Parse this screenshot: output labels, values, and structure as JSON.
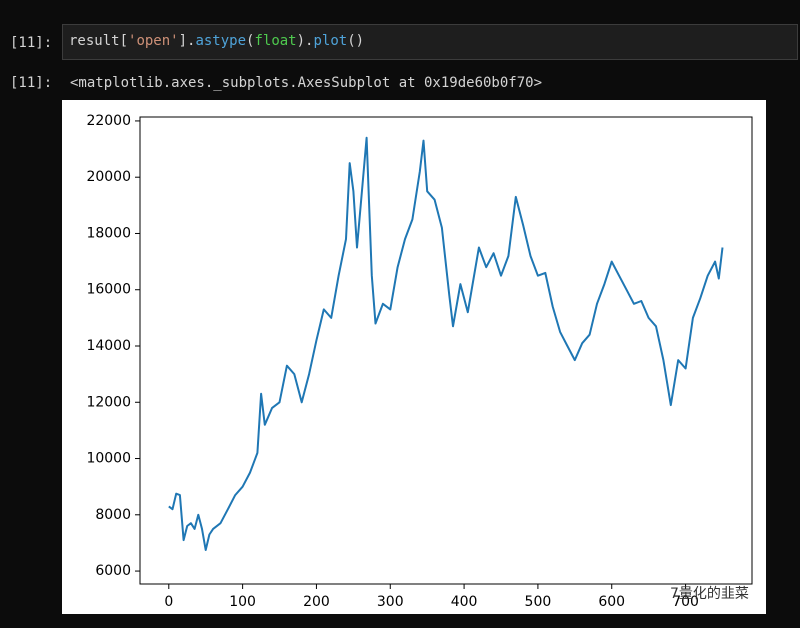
{
  "input": {
    "prompt": "[11]:",
    "code": [
      "result[",
      "'open'",
      "].",
      "astype",
      "(",
      "float",
      ").",
      "plot",
      "()"
    ]
  },
  "output": {
    "prompt": "[11]:",
    "text": "<matplotlib.axes._subplots.AxesSubplot at 0x19de60b0f70>"
  },
  "watermark": "7量化的韭菜",
  "chart_data": {
    "type": "line",
    "color": "#1f77b4",
    "x": [
      0,
      5,
      10,
      15,
      20,
      25,
      30,
      35,
      40,
      45,
      50,
      55,
      60,
      70,
      80,
      90,
      100,
      110,
      120,
      125,
      130,
      140,
      150,
      160,
      170,
      180,
      190,
      200,
      210,
      220,
      230,
      240,
      245,
      250,
      255,
      260,
      268,
      275,
      280,
      290,
      300,
      310,
      320,
      330,
      340,
      345,
      350,
      360,
      370,
      380,
      385,
      395,
      405,
      420,
      430,
      440,
      450,
      460,
      470,
      480,
      490,
      500,
      510,
      520,
      530,
      540,
      550,
      560,
      570,
      580,
      590,
      600,
      610,
      620,
      630,
      640,
      650,
      660,
      670,
      680,
      690,
      700,
      710,
      720,
      730,
      740,
      745,
      750
    ],
    "values": [
      8300,
      8200,
      8750,
      8700,
      7100,
      7600,
      7700,
      7500,
      8000,
      7500,
      6750,
      7300,
      7500,
      7700,
      8200,
      8700,
      9000,
      9500,
      10200,
      12300,
      11200,
      11800,
      12000,
      13300,
      13000,
      12000,
      13000,
      14200,
      15300,
      15000,
      16500,
      17800,
      20500,
      19500,
      17500,
      19000,
      21400,
      16500,
      14800,
      15500,
      15300,
      16800,
      17800,
      18500,
      20200,
      21300,
      19500,
      19200,
      18200,
      15800,
      14700,
      16200,
      15200,
      17500,
      16800,
      17300,
      16500,
      17200,
      19300,
      18300,
      17200,
      16500,
      16600,
      15400,
      14500,
      14000,
      13500,
      14100,
      14400,
      15500,
      16200,
      17000,
      16500,
      16000,
      15500,
      15600,
      15000,
      14700,
      13500,
      11900,
      13500,
      13200,
      15000,
      15700,
      16500,
      17000,
      16400,
      17500
    ],
    "xlim": [
      -39,
      790
    ],
    "ylim": [
      5540,
      22140
    ],
    "xticks": [
      0,
      100,
      200,
      300,
      400,
      500,
      600,
      700
    ],
    "yticks": [
      6000,
      8000,
      10000,
      12000,
      14000,
      16000,
      18000,
      20000,
      22000
    ]
  }
}
